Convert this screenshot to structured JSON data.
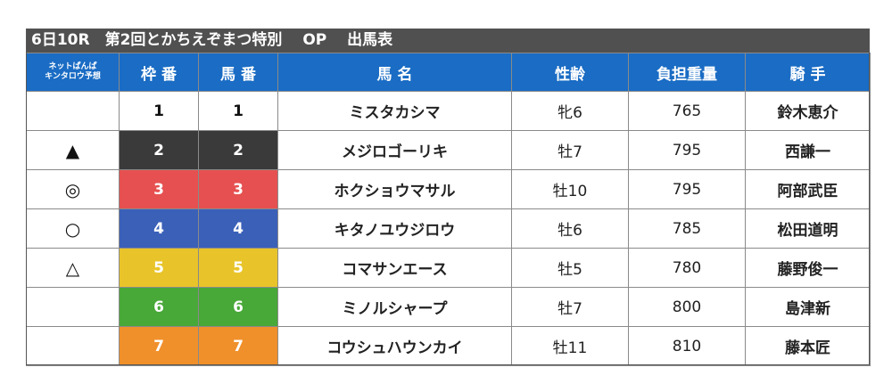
{
  "title": "6日10R　第2回とかちえぞまつ特別　 OP　 出馬表",
  "headers": {
    "prediction_line1": "ネットぱんぱ",
    "prediction_line2": "キンタロウ予想",
    "waku": "枠 番",
    "umaban": "馬 番",
    "horse_name": "馬 名",
    "sex_age": "性齢",
    "weight": "負担重量",
    "jockey": "騎 手"
  },
  "colors": {
    "header_bg": "#1a6cc4",
    "title_bg": "#505050",
    "frame_colors": [
      "#ffffff",
      "#3a3a3a",
      "#e65050",
      "#3a60b8",
      "#e8c42a",
      "#48a838",
      "#f0902a"
    ]
  },
  "rows": [
    {
      "mark": "",
      "waku": "1",
      "umaban": "1",
      "horse": "ミスタカシマ",
      "sex_age": "牝6",
      "weight": "765",
      "jockey": "鈴木恵介"
    },
    {
      "mark": "▲",
      "waku": "2",
      "umaban": "2",
      "horse": "メジロゴーリキ",
      "sex_age": "牡7",
      "weight": "795",
      "jockey": "西謙一"
    },
    {
      "mark": "◎",
      "waku": "3",
      "umaban": "3",
      "horse": "ホクショウマサル",
      "sex_age": "牡10",
      "weight": "795",
      "jockey": "阿部武臣"
    },
    {
      "mark": "○",
      "waku": "4",
      "umaban": "4",
      "horse": "キタノユウジロウ",
      "sex_age": "牡6",
      "weight": "785",
      "jockey": "松田道明"
    },
    {
      "mark": "△",
      "waku": "5",
      "umaban": "5",
      "horse": "コマサンエース",
      "sex_age": "牡5",
      "weight": "780",
      "jockey": "藤野俊一"
    },
    {
      "mark": "",
      "waku": "6",
      "umaban": "6",
      "horse": "ミノルシャープ",
      "sex_age": "牡7",
      "weight": "800",
      "jockey": "島津新"
    },
    {
      "mark": "",
      "waku": "7",
      "umaban": "7",
      "horse": "コウシュハウンカイ",
      "sex_age": "牡11",
      "weight": "810",
      "jockey": "藤本匠"
    }
  ]
}
